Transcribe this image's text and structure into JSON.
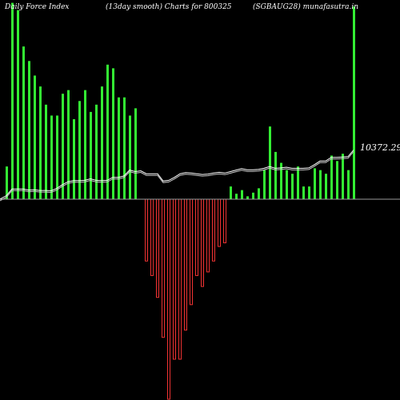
{
  "header": {
    "left": "Daily Force  Index",
    "center": "(13day smooth) Charts for 800325",
    "right": "(SGBAUG28) munafasutra.in"
  },
  "chart_data": {
    "type": "bar",
    "ylim": [
      -55,
      55
    ],
    "zero": 0,
    "grid": false,
    "colors": {
      "positive": "#33ee33",
      "negative": "#ee3333",
      "line": "#ffffff",
      "zero_line": "#9a9a9a"
    },
    "bar_x": [
      8,
      15,
      22,
      29,
      36,
      43,
      50,
      57,
      64,
      71,
      78,
      85,
      92,
      99,
      106,
      113,
      120,
      127,
      134,
      141,
      148,
      155,
      162,
      169,
      176,
      183,
      190,
      197,
      204,
      211,
      218,
      225,
      232,
      239,
      246,
      253,
      260,
      267,
      274,
      281,
      288,
      295,
      302,
      309,
      316,
      323,
      330,
      337,
      344,
      351,
      358,
      365,
      372,
      379,
      386,
      393,
      400,
      407,
      414,
      421,
      428,
      435,
      442
    ],
    "values": [
      9,
      54,
      52,
      42,
      38,
      34,
      31,
      26,
      23,
      23,
      29,
      30,
      22,
      27,
      30,
      24,
      26,
      31,
      37,
      36,
      28,
      28,
      23,
      25,
      0,
      -17,
      -21,
      -27,
      -38,
      -55,
      -44,
      -44,
      -36,
      -29,
      -21,
      -24,
      -20,
      -17,
      -13,
      -12,
      3.5,
      1.5,
      2.5,
      0.8,
      1.8,
      3,
      8,
      20,
      13,
      10,
      8,
      7,
      9,
      3.5,
      3.5,
      8.5,
      8,
      7,
      12,
      10.5,
      12.5,
      8,
      53
    ],
    "line": [
      1,
      2.8,
      2.8,
      2.8,
      2.5,
      2.6,
      2.4,
      2.4,
      2.3,
      3.0,
      4.0,
      4.8,
      5.1,
      5.1,
      5.2,
      5.6,
      5.2,
      5.1,
      5.2,
      6.0,
      6.0,
      6.4,
      8.0,
      7.6,
      7.8,
      7.0,
      7.0,
      7.0,
      5.0,
      5.2,
      6.0,
      7.0,
      7.3,
      7.2,
      7.0,
      6.8,
      6.9,
      7.2,
      7.4,
      7.2,
      7.6,
      8.0,
      8.4,
      8.1,
      8.1,
      8.2,
      8.5,
      9.0,
      8.5,
      8.6,
      8.8,
      8.5,
      8.5,
      8.5,
      8.6,
      9.5,
      10.5,
      10.5,
      11.5,
      11.5,
      11.6,
      11.7,
      13.5
    ],
    "value_label": "10372.29"
  }
}
